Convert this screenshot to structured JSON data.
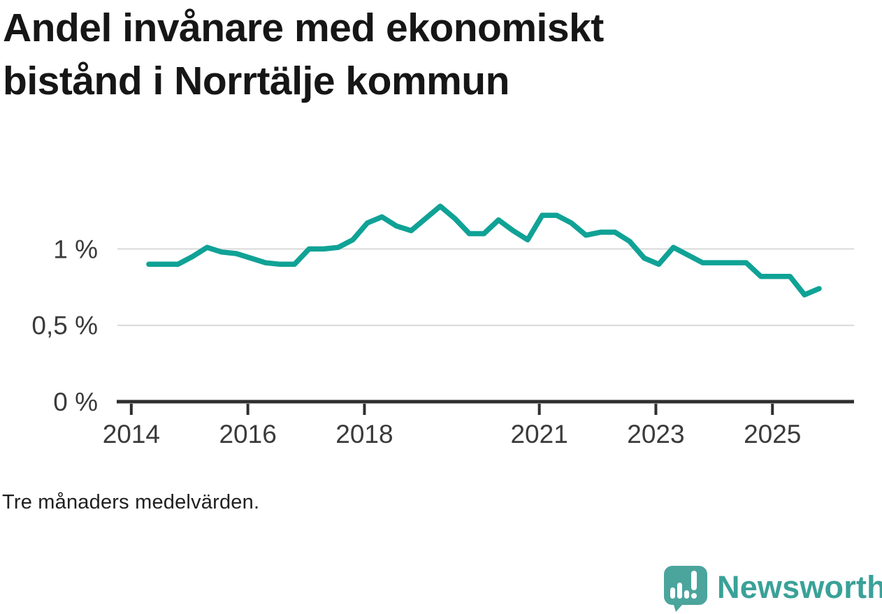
{
  "title": {
    "lines": [
      "Andel invånare med ekonomiskt",
      "bistånd i Norrtälje kommun"
    ],
    "text": "Andel invånare med ekonomiskt bistånd i Norrtälje kommun"
  },
  "caption": {
    "text": "Tre månaders medelvärden."
  },
  "branding": {
    "name": "Newsworthy",
    "icon": "newsworthy-speech-bubble-bar-chart-icon",
    "text_color": "#3aa198",
    "icon_color": "#4ba59d"
  },
  "colors": {
    "background": "#ffffff",
    "line": "#10a296",
    "gridline": "#d9d9d9",
    "axis": "#2f2f2f",
    "tick_labels": "#3a3a3a",
    "title": "#161616",
    "caption": "#1f1f1f"
  },
  "chart_data": {
    "type": "line",
    "title": "Andel invånare med ekonomiskt bistånd i Norrtälje kommun",
    "note": "Tre månaders medelvärden.",
    "unit": "%",
    "xlabel": "",
    "ylabel": "",
    "grid": "horizontal-only",
    "legend": "none",
    "xlim": [
      2013.75,
      2026.4
    ],
    "ylim": [
      0,
      1.4
    ],
    "x_ticks": [
      {
        "v": 2014,
        "label": "2014"
      },
      {
        "v": 2016,
        "label": "2016"
      },
      {
        "v": 2018,
        "label": "2018"
      },
      {
        "v": 2021,
        "label": "2021"
      },
      {
        "v": 2023,
        "label": "2023"
      },
      {
        "v": 2025,
        "label": "2025"
      }
    ],
    "y_ticks": [
      {
        "v": 0,
        "label": "0 %"
      },
      {
        "v": 0.5,
        "label": "0,5 %"
      },
      {
        "v": 1,
        "label": "1 %"
      }
    ],
    "series": [
      {
        "name": "Andel invånare med ekonomiskt bistånd, Norrtälje kommun",
        "color": "#10a296",
        "x": [
          2014.3,
          2014.55,
          2014.8,
          2015.05,
          2015.3,
          2015.55,
          2015.8,
          2016.05,
          2016.3,
          2016.55,
          2016.8,
          2017.05,
          2017.3,
          2017.55,
          2017.8,
          2018.05,
          2018.3,
          2018.55,
          2018.8,
          2019.05,
          2019.3,
          2019.55,
          2019.8,
          2020.05,
          2020.3,
          2020.55,
          2020.8,
          2021.05,
          2021.3,
          2021.55,
          2021.8,
          2022.05,
          2022.3,
          2022.55,
          2022.8,
          2023.05,
          2023.3,
          2023.55,
          2023.8,
          2024.05,
          2024.3,
          2024.55,
          2024.8,
          2025.05,
          2025.3,
          2025.55,
          2025.8
        ],
        "values": [
          0.9,
          0.9,
          0.9,
          0.95,
          1.01,
          0.98,
          0.97,
          0.94,
          0.91,
          0.9,
          0.9,
          1.0,
          1.0,
          1.01,
          1.06,
          1.17,
          1.21,
          1.15,
          1.12,
          1.2,
          1.28,
          1.2,
          1.1,
          1.1,
          1.19,
          1.12,
          1.06,
          1.22,
          1.22,
          1.17,
          1.09,
          1.11,
          1.11,
          1.05,
          0.94,
          0.9,
          1.01,
          0.96,
          0.91,
          0.91,
          0.91,
          0.91,
          0.82,
          0.82,
          0.82,
          0.7,
          0.74
        ]
      }
    ]
  }
}
